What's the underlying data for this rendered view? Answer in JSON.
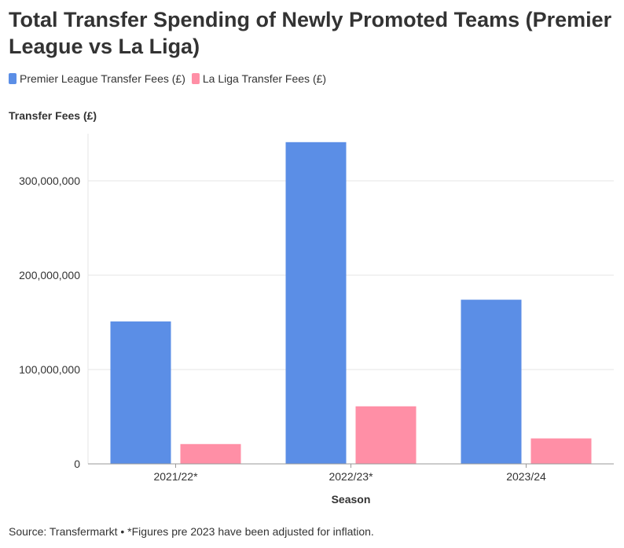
{
  "title": "Total Transfer Spending of Newly Promoted Teams (Premier League vs La Liga)",
  "source": "Source: Transfermarkt • *Figures pre 2023 have been adjusted for inflation.",
  "legend": [
    {
      "label": "Premier League Transfer Fees (£)",
      "color": "#5b8ee6"
    },
    {
      "label": "La Liga Transfer Fees (£)",
      "color": "#ff8fa6"
    }
  ],
  "chart_data": {
    "type": "bar",
    "title": "Total Transfer Spending of Newly Promoted Teams (Premier League vs La Liga)",
    "xlabel": "Season",
    "ylabel": "Transfer Fees (£)",
    "categories": [
      "2021/22*",
      "2022/23*",
      "2023/24"
    ],
    "series": [
      {
        "name": "Premier League Transfer Fees (£)",
        "color": "#5b8ee6",
        "values": [
          151000000,
          341000000,
          174000000
        ]
      },
      {
        "name": "La Liga Transfer Fees (£)",
        "color": "#ff8fa6",
        "values": [
          21000000,
          61000000,
          27000000
        ]
      }
    ],
    "ylim": [
      0,
      350000000
    ],
    "yticks": [
      0,
      100000000,
      200000000,
      300000000
    ],
    "ytick_labels": [
      "0",
      "100,000,000",
      "200,000,000",
      "300,000,000"
    ],
    "grid": true,
    "legend_position": "top-left"
  }
}
